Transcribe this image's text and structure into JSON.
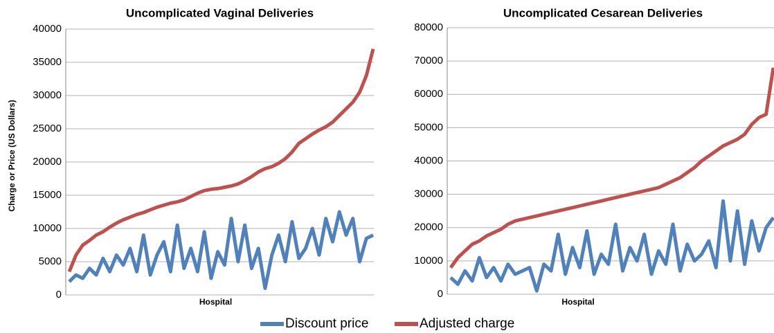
{
  "chart_data": [
    {
      "type": "line",
      "title": "Uncomplicated Vaginal Deliveries",
      "x_label": "Hospital",
      "y_label": "Charge or Price (US Dollars)",
      "ylim": [
        0,
        40000
      ],
      "yticks": [
        0,
        5000,
        10000,
        15000,
        20000,
        25000,
        30000,
        35000,
        40000
      ],
      "grid": true,
      "series": [
        {
          "name": "Discount price",
          "color": "#4f81bd",
          "values": [
            2000,
            3000,
            2500,
            4000,
            3000,
            5500,
            3500,
            6000,
            4500,
            7000,
            3500,
            9000,
            3000,
            6000,
            8000,
            3500,
            10500,
            4000,
            7000,
            3500,
            9500,
            2500,
            6500,
            4500,
            11500,
            5000,
            10500,
            4000,
            7000,
            1000,
            6000,
            9000,
            5000,
            11000,
            5500,
            7000,
            10000,
            6000,
            11500,
            8000,
            12500,
            9000,
            11500,
            5000,
            8500,
            9000
          ]
        },
        {
          "name": "Adjusted charge",
          "color": "#c0504d",
          "values": [
            3500,
            6000,
            7500,
            8200,
            9000,
            9500,
            10200,
            10800,
            11300,
            11700,
            12100,
            12400,
            12800,
            13200,
            13500,
            13800,
            14000,
            14300,
            14800,
            15300,
            15700,
            15900,
            16000,
            16200,
            16400,
            16700,
            17200,
            17800,
            18500,
            19000,
            19300,
            19800,
            20500,
            21500,
            22800,
            23500,
            24200,
            24800,
            25300,
            26000,
            27000,
            28000,
            29000,
            30500,
            33000,
            37000
          ]
        }
      ]
    },
    {
      "type": "line",
      "title": "Uncomplicated Cesarean Deliveries",
      "x_label": "Hospital",
      "ylim": [
        0,
        80000
      ],
      "yticks": [
        0,
        10000,
        20000,
        30000,
        40000,
        50000,
        60000,
        70000,
        80000
      ],
      "grid": true,
      "series": [
        {
          "name": "Discount price",
          "color": "#4f81bd",
          "values": [
            5000,
            3000,
            7000,
            4000,
            11000,
            5000,
            8000,
            4000,
            9000,
            6000,
            7000,
            8000,
            1000,
            9000,
            7000,
            18000,
            6000,
            14000,
            8000,
            19000,
            6000,
            12000,
            9000,
            21000,
            7000,
            14000,
            10000,
            18000,
            6000,
            13000,
            9000,
            21000,
            7000,
            15000,
            10000,
            12000,
            16000,
            8000,
            28000,
            10000,
            25000,
            9000,
            22000,
            13000,
            20000,
            23000
          ]
        },
        {
          "name": "Adjusted charge",
          "color": "#c0504d",
          "values": [
            8000,
            11000,
            13000,
            15000,
            16000,
            17500,
            18500,
            19500,
            21000,
            22000,
            22500,
            23000,
            23500,
            24000,
            24500,
            25000,
            25500,
            26000,
            26500,
            27000,
            27500,
            28000,
            28500,
            29000,
            29500,
            30000,
            30500,
            31000,
            31500,
            32000,
            33000,
            34000,
            35000,
            36500,
            38000,
            40000,
            41500,
            43000,
            44500,
            45500,
            46500,
            48000,
            51000,
            53000,
            54000,
            68000
          ]
        }
      ]
    }
  ]
}
